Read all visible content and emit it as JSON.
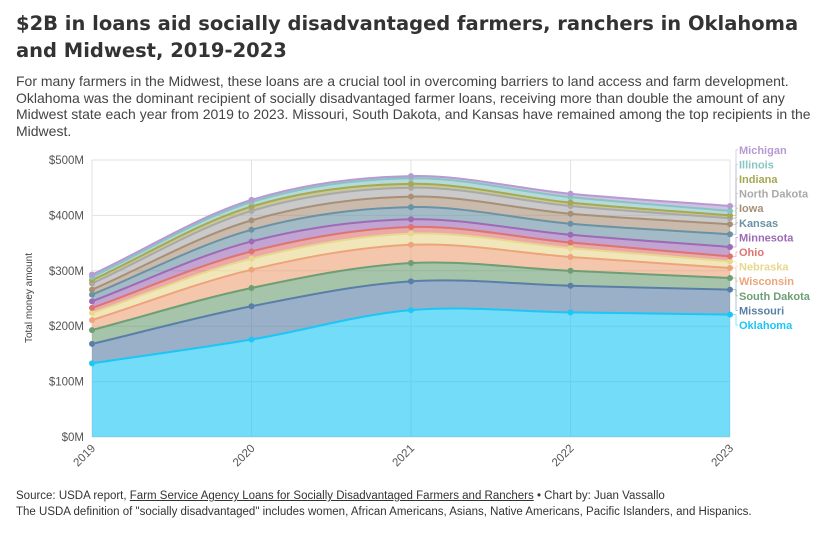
{
  "header": {
    "title": "$2B in loans aid socially disadvantaged farmers, ranchers in Oklahoma and Midwest, 2019-2023",
    "subtitle": "For many farmers in the Midwest, these loans are a crucial tool in overcoming barriers to land access and farm development. Oklahoma was the dominant recipient of socially disadvantaged farmer loans, receiving more than double the amount of any Midwest state each year from 2019 to 2023. Missouri, South Dakota, and Kansas have remained among the top recipients in the Midwest."
  },
  "footer": {
    "source_prefix": "Source: USDA report, ",
    "source_link": "Farm Service Agency Loans for Socially Disadvantaged Farmers and Ranchers",
    "credit": " • Chart by: Juan Vassallo",
    "note": "The USDA definition of \"socially disadvantaged\" includes women, African Americans, Asians, Native Americans, Pacific Islanders, and Hispanics."
  },
  "chart_data": {
    "type": "area",
    "stacked": true,
    "curve": "smooth",
    "x": [
      "2019",
      "2020",
      "2021",
      "2022",
      "2023"
    ],
    "ylabel": "Total money amount",
    "ylim": [
      0,
      500000000
    ],
    "yticks": [
      {
        "value": 0,
        "label": "$0M"
      },
      {
        "value": 100000000,
        "label": "$100M"
      },
      {
        "value": 200000000,
        "label": "$200M"
      },
      {
        "value": 300000000,
        "label": "$300M"
      },
      {
        "value": 400000000,
        "label": "$400M"
      },
      {
        "value": 500000000,
        "label": "$500M"
      }
    ],
    "grid": true,
    "legend_position": "right",
    "series": [
      {
        "name": "Oklahoma",
        "color": "#1cc6f5",
        "values": [
          133000000,
          176000000,
          229000000,
          225000000,
          221000000
        ]
      },
      {
        "name": "Missouri",
        "color": "#5a7fa6",
        "values": [
          35000000,
          60000000,
          52000000,
          48000000,
          45000000
        ]
      },
      {
        "name": "South Dakota",
        "color": "#6e9f74",
        "values": [
          25000000,
          33000000,
          33000000,
          27000000,
          21000000
        ]
      },
      {
        "name": "Wisconsin",
        "color": "#eea47b",
        "values": [
          18000000,
          33000000,
          33000000,
          25000000,
          18000000
        ]
      },
      {
        "name": "Nebraska",
        "color": "#e8d78e",
        "values": [
          13000000,
          20000000,
          20000000,
          16000000,
          12000000
        ]
      },
      {
        "name": "Ohio",
        "color": "#de7471",
        "values": [
          9000000,
          13000000,
          12000000,
          10000000,
          9000000
        ]
      },
      {
        "name": "Minnesota",
        "color": "#9d6bb5",
        "values": [
          12000000,
          18000000,
          14000000,
          14000000,
          17000000
        ]
      },
      {
        "name": "Kansas",
        "color": "#6a92a4",
        "values": [
          12000000,
          21000000,
          22000000,
          20000000,
          23000000
        ]
      },
      {
        "name": "Iowa",
        "color": "#a89078",
        "values": [
          9000000,
          17000000,
          19000000,
          18000000,
          18000000
        ]
      },
      {
        "name": "North Dakota",
        "color": "#a9a9a9",
        "values": [
          11000000,
          17000000,
          16000000,
          14000000,
          11000000
        ]
      },
      {
        "name": "Indiana",
        "color": "#a6a853",
        "values": [
          6000000,
          8000000,
          7000000,
          6000000,
          5000000
        ]
      },
      {
        "name": "Illinois",
        "color": "#86c5c4",
        "values": [
          6000000,
          8000000,
          10000000,
          10000000,
          8000000
        ]
      },
      {
        "name": "Michigan",
        "color": "#b69ad2",
        "values": [
          4000000,
          4000000,
          4000000,
          6000000,
          9000000
        ]
      }
    ]
  }
}
